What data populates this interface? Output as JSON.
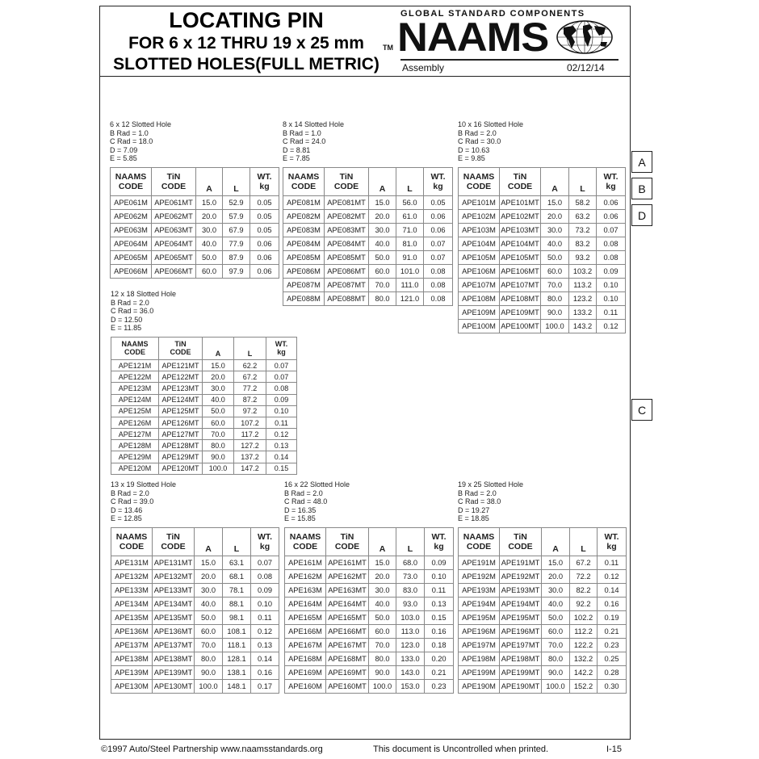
{
  "header": {
    "title_line1": "LOCATING PIN",
    "title_line2": "FOR 6 x 12 THRU 19 x 25 mm",
    "title_line3": "SLOTTED HOLES(FULL METRIC)",
    "tm": "TM",
    "tagline": "GLOBAL STANDARD COMPONENTS",
    "logo": "NAAMS",
    "section": "Assembly",
    "date": "02/12/14"
  },
  "tabs": [
    "A",
    "B",
    "D",
    "C"
  ],
  "columns": [
    "NAAMS CODE",
    "TiN CODE",
    "A",
    "L",
    "WT. kg"
  ],
  "sections": [
    {
      "title": "6 x 12 Slotted Hole",
      "b_rad": "B Rad = 1.0",
      "c_rad": "C Rad = 18.0",
      "d": "D = 7.09",
      "e": "E = 5.85",
      "rows": [
        [
          "APE061M",
          "APE061MT",
          "15.0",
          "52.9",
          "0.05"
        ],
        [
          "APE062M",
          "APE062MT",
          "20.0",
          "57.9",
          "0.05"
        ],
        [
          "APE063M",
          "APE063MT",
          "30.0",
          "67.9",
          "0.05"
        ],
        [
          "APE064M",
          "APE064MT",
          "40.0",
          "77.9",
          "0.06"
        ],
        [
          "APE065M",
          "APE065MT",
          "50.0",
          "87.9",
          "0.06"
        ],
        [
          "APE066M",
          "APE066MT",
          "60.0",
          "97.9",
          "0.06"
        ]
      ]
    },
    {
      "title": "8 x 14 Slotted Hole",
      "b_rad": "B Rad = 1.0",
      "c_rad": "C Rad = 24.0",
      "d": "D = 8.81",
      "e": "E = 7.85",
      "rows": [
        [
          "APE081M",
          "APE081MT",
          "15.0",
          "56.0",
          "0.05"
        ],
        [
          "APE082M",
          "APE082MT",
          "20.0",
          "61.0",
          "0.06"
        ],
        [
          "APE083M",
          "APE083MT",
          "30.0",
          "71.0",
          "0.06"
        ],
        [
          "APE084M",
          "APE084MT",
          "40.0",
          "81.0",
          "0.07"
        ],
        [
          "APE085M",
          "APE085MT",
          "50.0",
          "91.0",
          "0.07"
        ],
        [
          "APE086M",
          "APE086MT",
          "60.0",
          "101.0",
          "0.08"
        ],
        [
          "APE087M",
          "APE087MT",
          "70.0",
          "111.0",
          "0.08"
        ],
        [
          "APE088M",
          "APE088MT",
          "80.0",
          "121.0",
          "0.08"
        ]
      ]
    },
    {
      "title": "10 x 16 Slotted Hole",
      "b_rad": "B Rad = 2.0",
      "c_rad": "C Rad = 30.0",
      "d": "D = 10.63",
      "e": "E = 9.85",
      "rows": [
        [
          "APE101M",
          "APE101MT",
          "15.0",
          "58.2",
          "0.06"
        ],
        [
          "APE102M",
          "APE102MT",
          "20.0",
          "63.2",
          "0.06"
        ],
        [
          "APE103M",
          "APE103MT",
          "30.0",
          "73.2",
          "0.07"
        ],
        [
          "APE104M",
          "APE104MT",
          "40.0",
          "83.2",
          "0.08"
        ],
        [
          "APE105M",
          "APE105MT",
          "50.0",
          "93.2",
          "0.08"
        ],
        [
          "APE106M",
          "APE106MT",
          "60.0",
          "103.2",
          "0.09"
        ],
        [
          "APE107M",
          "APE107MT",
          "70.0",
          "113.2",
          "0.10"
        ],
        [
          "APE108M",
          "APE108MT",
          "80.0",
          "123.2",
          "0.10"
        ],
        [
          "APE109M",
          "APE109MT",
          "90.0",
          "133.2",
          "0.11"
        ],
        [
          "APE100M",
          "APE100MT",
          "100.0",
          "143.2",
          "0.12"
        ]
      ]
    },
    {
      "title": "12 x 18 Slotted Hole",
      "b_rad": "B Rad = 2.0",
      "c_rad": "C Rad = 36.0",
      "d": "D = 12.50",
      "e": "E = 11.85",
      "rows": [
        [
          "APE121M",
          "APE121MT",
          "15.0",
          "62.2",
          "0.07"
        ],
        [
          "APE122M",
          "APE122MT",
          "20.0",
          "67.2",
          "0.07"
        ],
        [
          "APE123M",
          "APE123MT",
          "30.0",
          "77.2",
          "0.08"
        ],
        [
          "APE124M",
          "APE124MT",
          "40.0",
          "87.2",
          "0.09"
        ],
        [
          "APE125M",
          "APE125MT",
          "50.0",
          "97.2",
          "0.10"
        ],
        [
          "APE126M",
          "APE126MT",
          "60.0",
          "107.2",
          "0.11"
        ],
        [
          "APE127M",
          "APE127MT",
          "70.0",
          "117.2",
          "0.12"
        ],
        [
          "APE128M",
          "APE128MT",
          "80.0",
          "127.2",
          "0.13"
        ],
        [
          "APE129M",
          "APE129MT",
          "90.0",
          "137.2",
          "0.14"
        ],
        [
          "APE120M",
          "APE120MT",
          "100.0",
          "147.2",
          "0.15"
        ]
      ]
    },
    {
      "title": "13 x 19 Slotted Hole",
      "b_rad": "B Rad = 2.0",
      "c_rad": "C Rad = 39.0",
      "d": "D = 13.46",
      "e": "E = 12.85",
      "rows": [
        [
          "APE131M",
          "APE131MT",
          "15.0",
          "63.1",
          "0.07"
        ],
        [
          "APE132M",
          "APE132MT",
          "20.0",
          "68.1",
          "0.08"
        ],
        [
          "APE133M",
          "APE133MT",
          "30.0",
          "78.1",
          "0.09"
        ],
        [
          "APE134M",
          "APE134MT",
          "40.0",
          "88.1",
          "0.10"
        ],
        [
          "APE135M",
          "APE135MT",
          "50.0",
          "98.1",
          "0.11"
        ],
        [
          "APE136M",
          "APE136MT",
          "60.0",
          "108.1",
          "0.12"
        ],
        [
          "APE137M",
          "APE137MT",
          "70.0",
          "118.1",
          "0.13"
        ],
        [
          "APE138M",
          "APE138MT",
          "80.0",
          "128.1",
          "0.14"
        ],
        [
          "APE139M",
          "APE139MT",
          "90.0",
          "138.1",
          "0.16"
        ],
        [
          "APE130M",
          "APE130MT",
          "100.0",
          "148.1",
          "0.17"
        ]
      ]
    },
    {
      "title": "16 x 22 Slotted Hole",
      "b_rad": "B Rad = 2.0",
      "c_rad": "C Rad = 48.0",
      "d": "D = 16.35",
      "e": "E = 15.85",
      "rows": [
        [
          "APE161M",
          "APE161MT",
          "15.0",
          "68.0",
          "0.09"
        ],
        [
          "APE162M",
          "APE162MT",
          "20.0",
          "73.0",
          "0.10"
        ],
        [
          "APE163M",
          "APE163MT",
          "30.0",
          "83.0",
          "0.11"
        ],
        [
          "APE164M",
          "APE164MT",
          "40.0",
          "93.0",
          "0.13"
        ],
        [
          "APE165M",
          "APE165MT",
          "50.0",
          "103.0",
          "0.15"
        ],
        [
          "APE166M",
          "APE166MT",
          "60.0",
          "113.0",
          "0.16"
        ],
        [
          "APE167M",
          "APE167MT",
          "70.0",
          "123.0",
          "0.18"
        ],
        [
          "APE168M",
          "APE168MT",
          "80.0",
          "133.0",
          "0.20"
        ],
        [
          "APE169M",
          "APE169MT",
          "90.0",
          "143.0",
          "0.21"
        ],
        [
          "APE160M",
          "APE160MT",
          "100.0",
          "153.0",
          "0.23"
        ]
      ]
    },
    {
      "title": "19 x 25 Slotted Hole",
      "b_rad": "B Rad = 2.0",
      "c_rad": "C Rad = 38.0",
      "d": "D = 19.27",
      "e": "E = 18.85",
      "rows": [
        [
          "APE191M",
          "APE191MT",
          "15.0",
          "67.2",
          "0.11"
        ],
        [
          "APE192M",
          "APE192MT",
          "20.0",
          "72.2",
          "0.12"
        ],
        [
          "APE193M",
          "APE193MT",
          "30.0",
          "82.2",
          "0.14"
        ],
        [
          "APE194M",
          "APE194MT",
          "40.0",
          "92.2",
          "0.16"
        ],
        [
          "APE195M",
          "APE195MT",
          "50.0",
          "102.2",
          "0.19"
        ],
        [
          "APE196M",
          "APE196MT",
          "60.0",
          "112.2",
          "0.21"
        ],
        [
          "APE197M",
          "APE197MT",
          "70.0",
          "122.2",
          "0.23"
        ],
        [
          "APE198M",
          "APE198MT",
          "80.0",
          "132.2",
          "0.25"
        ],
        [
          "APE199M",
          "APE199MT",
          "90.0",
          "142.2",
          "0.28"
        ],
        [
          "APE190M",
          "APE190MT",
          "100.0",
          "152.2",
          "0.30"
        ]
      ]
    }
  ],
  "footer": {
    "copyright": "©1997 Auto/Steel Partnership   www.naamsstandards.org",
    "notice": "This document is Uncontrolled when printed.",
    "page": "I-15"
  }
}
